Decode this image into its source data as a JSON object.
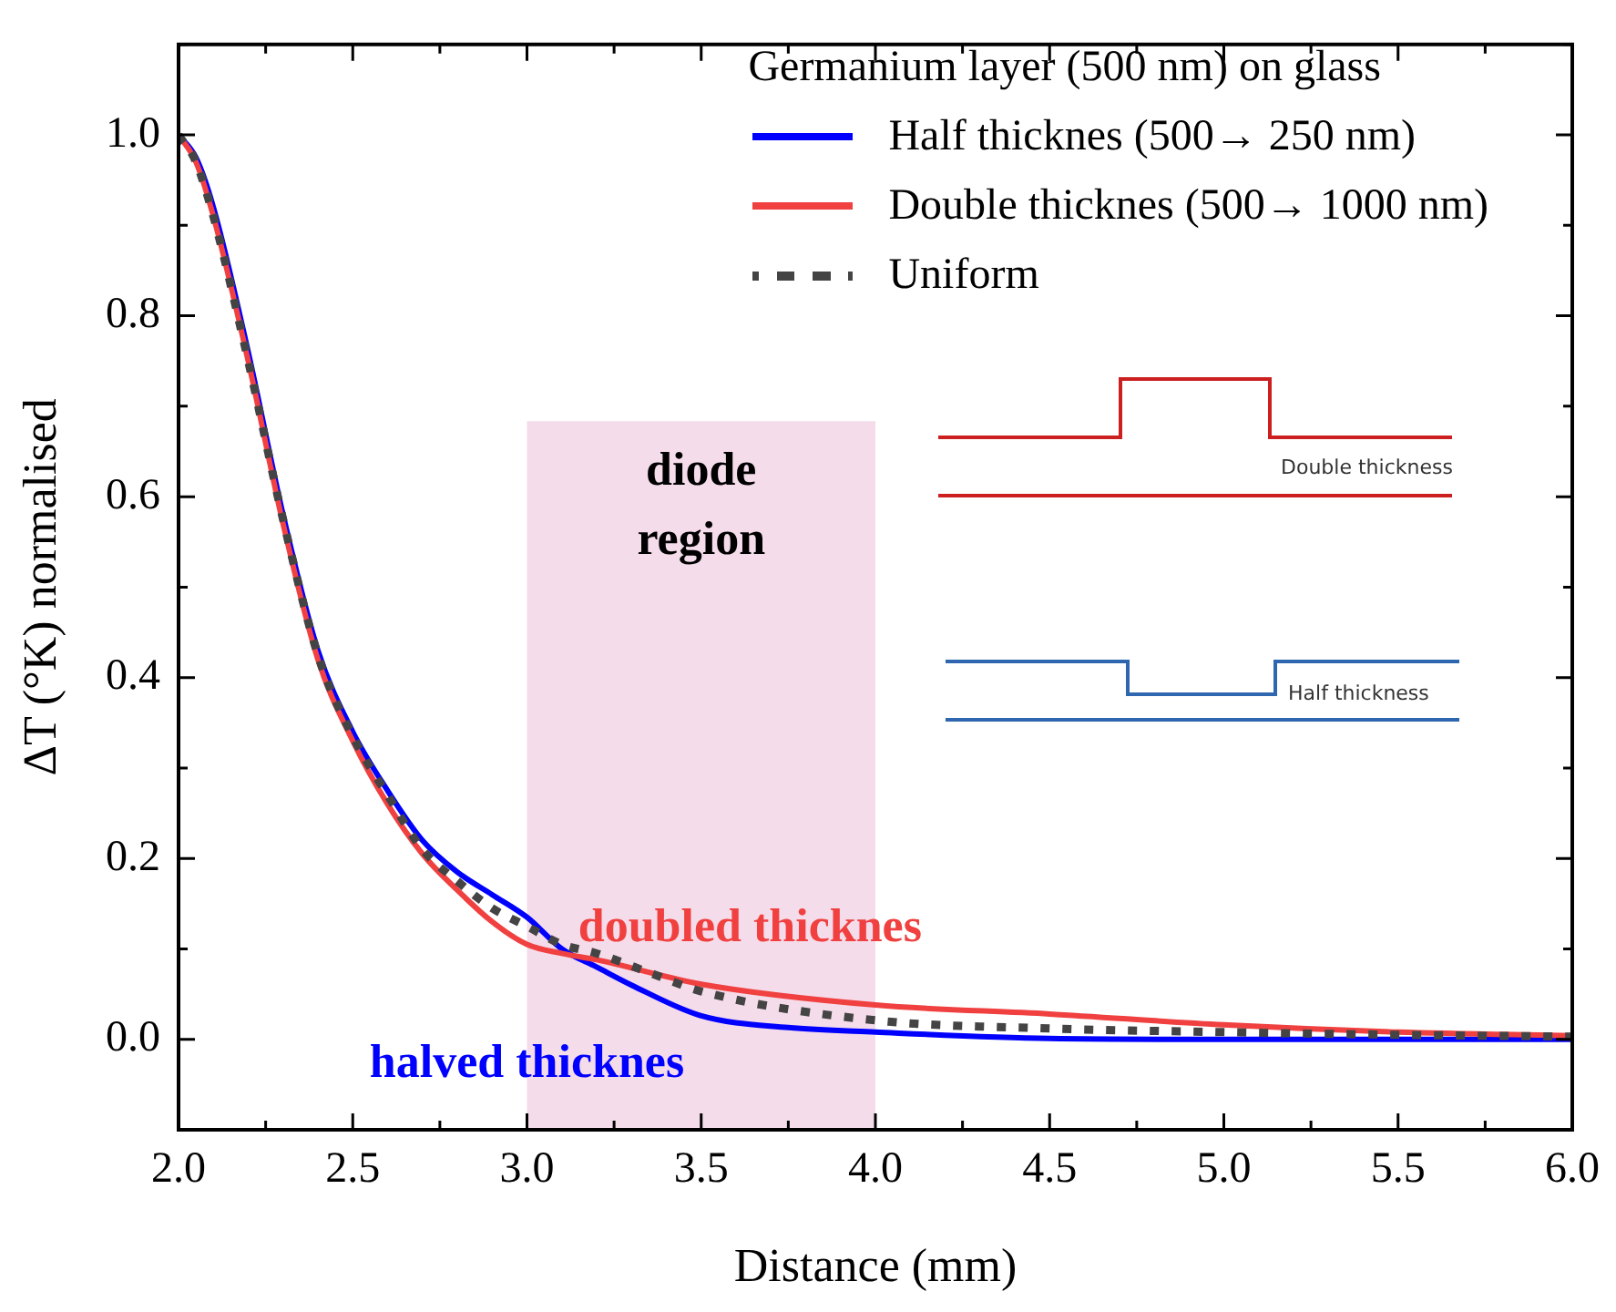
{
  "chart_data": {
    "type": "line",
    "xlabel": "Distance (mm)",
    "ylabel": "ΔT (°K) normalised",
    "legend_title": "Germanium layer (500 nm) on glass",
    "xlim": [
      2.0,
      6.0
    ],
    "ylim": [
      -0.1,
      1.1
    ],
    "xticks": [
      {
        "value": 2,
        "label": "2.0"
      },
      {
        "value": 2.5,
        "label": "2.5"
      },
      {
        "value": 3,
        "label": "3.0"
      },
      {
        "value": 3.5,
        "label": "3.5"
      },
      {
        "value": 4,
        "label": "4.0"
      },
      {
        "value": 4.5,
        "label": "4.5"
      },
      {
        "value": 5,
        "label": "5.0"
      },
      {
        "value": 5.5,
        "label": "5.5"
      },
      {
        "value": 6,
        "label": "6.0"
      }
    ],
    "yticks": [
      {
        "value": 0,
        "label": "0.0"
      },
      {
        "value": 0.2,
        "label": "0.2"
      },
      {
        "value": 0.4,
        "label": "0.4"
      },
      {
        "value": 0.6,
        "label": "0.6"
      },
      {
        "value": 0.8,
        "label": "0.8"
      },
      {
        "value": 1,
        "label": "1.0"
      }
    ],
    "legend": "top right",
    "grid": false,
    "marker": "none",
    "series": [
      {
        "name": "Half thicknes (500→ 250 nm)",
        "color": "#0000ff",
        "line_style": "solid",
        "x": [
          2.0,
          2.05,
          2.1,
          2.2,
          2.3,
          2.4,
          2.5,
          2.6,
          2.7,
          2.8,
          2.9,
          3.0,
          3.1,
          3.2,
          3.3,
          3.5,
          3.75,
          4.0,
          4.5,
          5.0,
          5.5,
          6.0
        ],
        "values": [
          1.0,
          0.975,
          0.92,
          0.76,
          0.58,
          0.43,
          0.34,
          0.275,
          0.22,
          0.185,
          0.16,
          0.135,
          0.1,
          0.08,
          0.06,
          0.026,
          0.013,
          0.008,
          0.001,
          0.0,
          0.0,
          0.0
        ]
      },
      {
        "name": "Double thicknes (500→ 1000 nm)",
        "color": "#f04040",
        "line_style": "solid",
        "x": [
          2.0,
          2.05,
          2.1,
          2.2,
          2.3,
          2.4,
          2.5,
          2.6,
          2.7,
          2.8,
          2.9,
          3.0,
          3.1,
          3.2,
          3.5,
          4.0,
          4.5,
          5.0,
          5.5,
          6.0
        ],
        "values": [
          1.0,
          0.97,
          0.91,
          0.75,
          0.57,
          0.42,
          0.33,
          0.26,
          0.205,
          0.165,
          0.13,
          0.105,
          0.095,
          0.088,
          0.061,
          0.038,
          0.028,
          0.016,
          0.008,
          0.004
        ]
      },
      {
        "name": "Uniform",
        "color": "#444444",
        "line_style": "dotted",
        "x": [
          2.0,
          2.05,
          2.1,
          2.2,
          2.3,
          2.4,
          2.5,
          2.6,
          2.7,
          2.8,
          2.9,
          3.0,
          3.1,
          3.2,
          3.37,
          3.5,
          4.0,
          4.5,
          5.0,
          5.5,
          6.0
        ],
        "values": [
          1.0,
          0.97,
          0.91,
          0.75,
          0.575,
          0.425,
          0.335,
          0.27,
          0.21,
          0.175,
          0.145,
          0.125,
          0.105,
          0.095,
          0.071,
          0.053,
          0.021,
          0.012,
          0.008,
          0.005,
          0.003
        ]
      }
    ],
    "bands": [
      {
        "axis": "x",
        "from": 3.0,
        "to": 4.0,
        "label": "diode region",
        "color": "#f5dcea"
      }
    ],
    "annotations": [
      "doubled thicknes",
      "halved thicknes",
      "Double thickness",
      "Half thickness"
    ]
  }
}
